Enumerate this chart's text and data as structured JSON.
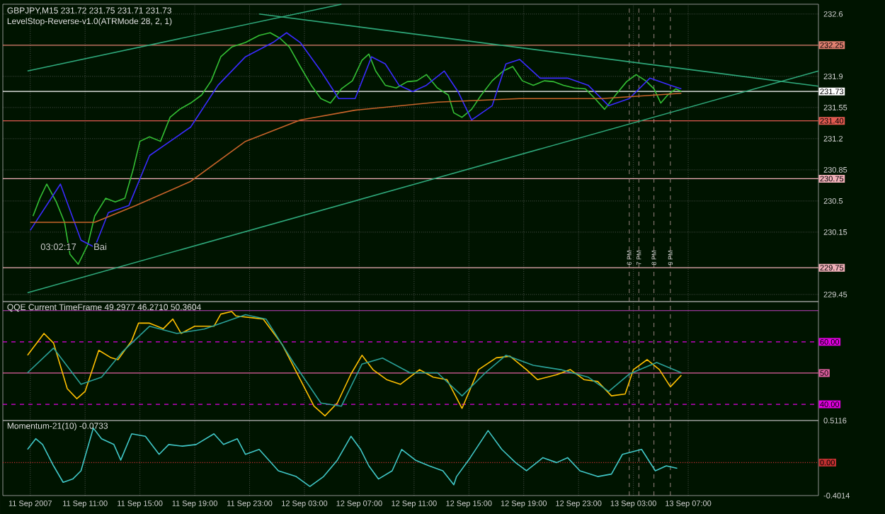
{
  "chart_data": [
    {
      "type": "line",
      "title": "GBPJPY,M15 231.72 231.75 231.71 231.73",
      "subtitle": "LevelStop-Reverse-v1.0(ATRMode 28, 2, 1)",
      "xlim": [
        "2007-09-11T05:00",
        "2007-09-13T16:30"
      ],
      "ylim": [
        229.37,
        232.71
      ],
      "xticks": [
        "2007-09-11T07:00",
        "2007-09-11T11:00",
        "2007-09-11T15:00",
        "2007-09-11T19:00",
        "2007-09-11T23:00",
        "2007-09-12T03:00",
        "2007-09-12T07:00",
        "2007-09-12T11:00",
        "2007-09-12T15:00",
        "2007-09-12T19:00",
        "2007-09-12T23:00",
        "2007-09-13T03:00",
        "2007-09-13T07:00"
      ],
      "yticks": [
        229.45,
        230.15,
        230.5,
        230.85,
        231.2,
        231.55,
        231.9,
        232.6
      ],
      "tick_labels": "y",
      "grid": true,
      "series": [
        {
          "color": "#34c034",
          "x": [
            "2007-09-11T07:12",
            "2007-09-11T07:42",
            "2007-09-11T08:12",
            "2007-09-11T08:54",
            "2007-09-11T09:30",
            "2007-09-11T09:54",
            "2007-09-11T10:30",
            "2007-09-11T11:12",
            "2007-09-11T11:42",
            "2007-09-11T12:30",
            "2007-09-11T13:12",
            "2007-09-11T13:54",
            "2007-09-11T14:30",
            "2007-09-11T15:00",
            "2007-09-11T15:42",
            "2007-09-11T16:30",
            "2007-09-11T17:12",
            "2007-09-11T17:54",
            "2007-09-11T18:42",
            "2007-09-11T19:30",
            "2007-09-11T20:12",
            "2007-09-11T20:54",
            "2007-09-11T21:42",
            "2007-09-11T22:42",
            "2007-09-11T23:42",
            "2007-09-12T00:30",
            "2007-09-12T01:12",
            "2007-09-12T01:54",
            "2007-09-12T02:42",
            "2007-09-12T03:30",
            "2007-09-12T04:12",
            "2007-09-12T04:54",
            "2007-09-12T05:42",
            "2007-09-12T06:30",
            "2007-09-12T07:12",
            "2007-09-12T07:42",
            "2007-09-12T08:12",
            "2007-09-12T08:54",
            "2007-09-12T09:42",
            "2007-09-12T10:30",
            "2007-09-12T11:12",
            "2007-09-12T11:54",
            "2007-09-12T12:42",
            "2007-09-12T13:30",
            "2007-09-12T13:54",
            "2007-09-12T14:30",
            "2007-09-12T15:12",
            "2007-09-12T15:54",
            "2007-09-12T16:42",
            "2007-09-12T17:30",
            "2007-09-12T18:12",
            "2007-09-12T18:54",
            "2007-09-12T19:42",
            "2007-09-12T20:30",
            "2007-09-12T21:12",
            "2007-09-12T21:54",
            "2007-09-12T22:42",
            "2007-09-12T23:30",
            "2007-09-13T00:12",
            "2007-09-13T00:54",
            "2007-09-13T01:42",
            "2007-09-13T02:30",
            "2007-09-13T03:12",
            "2007-09-13T03:54",
            "2007-09-13T04:30",
            "2007-09-13T05:00",
            "2007-09-13T05:30",
            "2007-09-13T06:06",
            "2007-09-13T06:30"
          ],
          "values": [
            230.33,
            230.53,
            230.69,
            230.49,
            230.26,
            229.9,
            229.79,
            230.01,
            230.33,
            230.53,
            230.49,
            230.53,
            230.85,
            231.17,
            231.22,
            231.17,
            231.44,
            231.53,
            231.6,
            231.69,
            231.85,
            232.12,
            232.23,
            232.28,
            232.36,
            232.39,
            232.33,
            232.23,
            232.01,
            231.8,
            231.65,
            231.6,
            231.76,
            231.85,
            232.08,
            232.15,
            231.96,
            231.8,
            231.77,
            231.84,
            231.85,
            231.92,
            231.77,
            231.69,
            231.49,
            231.44,
            231.53,
            231.69,
            231.85,
            231.96,
            232.01,
            231.85,
            231.8,
            231.85,
            231.84,
            231.8,
            231.77,
            231.76,
            231.65,
            231.53,
            231.69,
            231.84,
            231.92,
            231.85,
            231.76,
            231.6,
            231.69,
            231.76,
            231.73
          ]
        },
        {
          "color": "#3a2bff",
          "x": [
            "2007-09-11T07:00",
            "2007-09-11T09:12",
            "2007-09-11T10:42",
            "2007-09-11T11:42",
            "2007-09-11T12:42",
            "2007-09-11T14:12",
            "2007-09-11T15:42",
            "2007-09-11T17:12",
            "2007-09-11T18:42",
            "2007-09-11T20:42",
            "2007-09-11T22:42",
            "2007-09-12T00:42",
            "2007-09-12T01:42",
            "2007-09-12T02:42",
            "2007-09-12T04:12",
            "2007-09-12T05:30",
            "2007-09-12T06:42",
            "2007-09-12T07:54",
            "2007-09-12T08:54",
            "2007-09-12T09:54",
            "2007-09-12T10:54",
            "2007-09-12T11:54",
            "2007-09-12T13:12",
            "2007-09-12T14:12",
            "2007-09-12T15:12",
            "2007-09-12T16:42",
            "2007-09-12T17:42",
            "2007-09-12T18:42",
            "2007-09-12T20:12",
            "2007-09-12T22:12",
            "2007-09-12T23:42",
            "2007-09-13T01:12",
            "2007-09-13T02:42",
            "2007-09-13T04:12",
            "2007-09-13T05:42",
            "2007-09-13T06:30"
          ],
          "values": [
            230.17,
            230.69,
            230.06,
            229.98,
            230.37,
            230.45,
            231.01,
            231.17,
            231.33,
            231.8,
            232.12,
            232.28,
            232.39,
            232.28,
            231.96,
            231.65,
            231.65,
            232.12,
            232.04,
            231.8,
            231.73,
            231.8,
            231.96,
            231.73,
            231.41,
            231.57,
            232.04,
            232.09,
            231.88,
            231.88,
            231.8,
            231.57,
            231.65,
            231.88,
            231.8,
            231.76
          ]
        },
        {
          "color": "#c8642a",
          "x": [
            "2007-09-11T07:00",
            "2007-09-11T11:42",
            "2007-09-11T14:42",
            "2007-09-11T18:42",
            "2007-09-11T22:42",
            "2007-09-12T02:42",
            "2007-09-12T06:42",
            "2007-09-12T12:42",
            "2007-09-12T18:42",
            "2007-09-13T00:42",
            "2007-09-13T06:30"
          ],
          "values": [
            230.26,
            230.26,
            230.45,
            230.72,
            231.17,
            231.41,
            231.52,
            231.61,
            231.65,
            231.65,
            231.71
          ]
        },
        {
          "color": "#2ea87a",
          "x": [
            "2007-09-11T06:48",
            "2007-09-12T05:42"
          ],
          "values": [
            231.96,
            232.71
          ]
        },
        {
          "color": "#2ea87a",
          "x": [
            "2007-09-11T23:42",
            "2007-09-13T16:30"
          ],
          "values": [
            232.6,
            231.79
          ]
        },
        {
          "color": "#2ea87a",
          "x": [
            "2007-09-11T06:48",
            "2007-09-13T16:30"
          ],
          "values": [
            229.47,
            231.96
          ]
        }
      ],
      "ref_lines": [
        {
          "axis": "y",
          "value": 232.25,
          "label": "232.25",
          "color": "#e08070",
          "line_style": "solid"
        },
        {
          "axis": "y",
          "value": 231.73,
          "label": "231.73",
          "color": "#ffffff",
          "line_style": "solid"
        },
        {
          "axis": "y",
          "value": 231.4,
          "label": "231.40",
          "color": "#e05a50",
          "line_style": "solid"
        },
        {
          "axis": "y",
          "value": 230.75,
          "label": "230.75",
          "color": "#f0b0b8",
          "line_style": "solid"
        },
        {
          "axis": "y",
          "value": 229.75,
          "label": "229.75",
          "color": "#f0b0b8",
          "line_style": "solid"
        },
        {
          "axis": "x",
          "value": "2007-09-13T02:42",
          "label": "6 PM",
          "color": "#c0a0a0",
          "line_style": "dashed"
        },
        {
          "axis": "x",
          "value": "2007-09-13T03:24",
          "label": "7 PM",
          "color": "#c0a0a0",
          "line_style": "dashed"
        },
        {
          "axis": "x",
          "value": "2007-09-13T04:30",
          "label": "8 PM",
          "color": "#c0a0a0",
          "line_style": "dashed"
        },
        {
          "axis": "x",
          "value": "2007-09-13T05:42",
          "label": "9 PM",
          "color": "#c0a0a0",
          "line_style": "dashed"
        }
      ],
      "annotations": [
        "03:02:17",
        "Bai"
      ]
    },
    {
      "type": "line",
      "title": "QQE Current TimeFrame 49.2977 46.2710 50.3604",
      "xlim": [
        "2007-09-11T05:00",
        "2007-09-13T16:30"
      ],
      "ylim": [
        34.8,
        72.9
      ],
      "xticks": [
        "2007-09-11T07:00",
        "2007-09-11T11:00",
        "2007-09-11T15:00",
        "2007-09-11T19:00",
        "2007-09-11T23:00",
        "2007-09-12T03:00",
        "2007-09-12T07:00",
        "2007-09-12T11:00",
        "2007-09-12T15:00",
        "2007-09-12T19:00",
        "2007-09-12T23:00",
        "2007-09-13T03:00",
        "2007-09-13T07:00"
      ],
      "tick_labels": "y",
      "grid": "x",
      "series": [
        {
          "color": "#ffc000",
          "x": [
            "2007-09-11T06:48",
            "2007-09-11T08:00",
            "2007-09-11T08:42",
            "2007-09-11T09:42",
            "2007-09-11T10:24",
            "2007-09-11T11:00",
            "2007-09-11T12:00",
            "2007-09-11T12:54",
            "2007-09-11T13:24",
            "2007-09-11T14:24",
            "2007-09-11T14:54",
            "2007-09-11T15:42",
            "2007-09-11T16:42",
            "2007-09-11T17:24",
            "2007-09-11T18:00",
            "2007-09-11T19:00",
            "2007-09-11T20:24",
            "2007-09-11T20:54",
            "2007-09-11T21:42",
            "2007-09-11T22:00",
            "2007-09-12T00:00",
            "2007-09-12T01:24",
            "2007-09-12T02:42",
            "2007-09-12T03:42",
            "2007-09-12T04:30",
            "2007-09-12T05:24",
            "2007-09-12T06:24",
            "2007-09-12T07:12",
            "2007-09-12T08:00",
            "2007-09-12T09:00",
            "2007-09-12T10:00",
            "2007-09-12T11:24",
            "2007-09-12T12:24",
            "2007-09-12T13:24",
            "2007-09-12T14:30",
            "2007-09-12T15:42",
            "2007-09-12T17:00",
            "2007-09-12T18:00",
            "2007-09-12T19:12",
            "2007-09-12T20:00",
            "2007-09-12T21:24",
            "2007-09-12T22:24",
            "2007-09-12T23:24",
            "2007-09-13T00:24",
            "2007-09-13T01:24",
            "2007-09-13T02:24",
            "2007-09-13T03:00",
            "2007-09-13T04:00",
            "2007-09-13T04:54",
            "2007-09-13T05:42",
            "2007-09-13T06:30"
          ],
          "values": [
            55.7,
            62.7,
            59.6,
            45.0,
            41.8,
            44.1,
            57.3,
            54.9,
            54.3,
            60.4,
            66.0,
            66.0,
            64.2,
            67.3,
            62.7,
            65.0,
            65.0,
            68.9,
            69.7,
            68.3,
            67.3,
            59.0,
            47.9,
            39.4,
            36.3,
            40.4,
            49.7,
            55.7,
            51.1,
            47.9,
            46.4,
            51.1,
            48.7,
            47.9,
            38.7,
            51.1,
            54.9,
            55.4,
            51.1,
            47.9,
            49.5,
            51.1,
            47.9,
            47.3,
            42.7,
            43.3,
            51.1,
            54.3,
            51.1,
            45.6,
            49.3
          ]
        },
        {
          "color": "#2aa198",
          "x": [
            "2007-09-11T06:48",
            "2007-09-11T08:42",
            "2007-09-11T10:42",
            "2007-09-11T12:12",
            "2007-09-11T13:42",
            "2007-09-11T15:42",
            "2007-09-11T17:42",
            "2007-09-11T19:42",
            "2007-09-11T22:42",
            "2007-09-12T00:12",
            "2007-09-12T02:12",
            "2007-09-12T04:12",
            "2007-09-12T05:42",
            "2007-09-12T07:12",
            "2007-09-12T08:42",
            "2007-09-12T10:42",
            "2007-09-12T12:42",
            "2007-09-12T14:30",
            "2007-09-12T16:12",
            "2007-09-12T17:42",
            "2007-09-12T19:42",
            "2007-09-12T21:42",
            "2007-09-12T23:42",
            "2007-09-13T01:12",
            "2007-09-13T02:42",
            "2007-09-13T04:42",
            "2007-09-13T06:30"
          ],
          "values": [
            50.1,
            58.0,
            46.4,
            48.7,
            56.7,
            65.0,
            62.7,
            64.1,
            68.7,
            67.3,
            53.4,
            40.4,
            39.4,
            52.9,
            54.8,
            50.1,
            50.1,
            42.7,
            50.1,
            55.7,
            52.5,
            51.1,
            48.7,
            44.1,
            49.7,
            53.4,
            50.1
          ]
        }
      ],
      "ref_lines": [
        {
          "axis": "y",
          "value": 70,
          "label": null,
          "color": "#c040c0",
          "line_style": "solid"
        },
        {
          "axis": "y",
          "value": 60,
          "label": "60.00",
          "color": "#e000e0",
          "line_style": "dashed"
        },
        {
          "axis": "y",
          "value": 50,
          "label": "50",
          "color": "#e060a0",
          "line_style": "solid"
        },
        {
          "axis": "y",
          "value": 40,
          "label": "40.00",
          "color": "#e000e0",
          "line_style": "dashed"
        },
        {
          "axis": "x",
          "value": "2007-09-13T02:42",
          "label": null,
          "color": "#c0a0a0",
          "line_style": "dashed"
        },
        {
          "axis": "x",
          "value": "2007-09-13T03:24",
          "label": null,
          "color": "#c0a0a0",
          "line_style": "dashed"
        },
        {
          "axis": "x",
          "value": "2007-09-13T04:30",
          "label": null,
          "color": "#c0a0a0",
          "line_style": "dashed"
        },
        {
          "axis": "x",
          "value": "2007-09-13T05:42",
          "label": null,
          "color": "#c0a0a0",
          "line_style": "dashed"
        }
      ]
    },
    {
      "type": "line",
      "title": "Momentum-21(10) -0.0733",
      "xlim": [
        "2007-09-11T05:00",
        "2007-09-13T16:30"
      ],
      "ylim": [
        -0.4014,
        0.5116
      ],
      "xticks": [
        {
          "value": "2007-09-11T07:00",
          "label": "11 Sep 2007"
        },
        {
          "value": "2007-09-11T11:00",
          "label": "11 Sep 11:00"
        },
        {
          "value": "2007-09-11T15:00",
          "label": "11 Sep 15:00"
        },
        {
          "value": "2007-09-11T19:00",
          "label": "11 Sep 19:00"
        },
        {
          "value": "2007-09-11T23:00",
          "label": "11 Sep 23:00"
        },
        {
          "value": "2007-09-12T03:00",
          "label": "12 Sep 03:00"
        },
        {
          "value": "2007-09-12T07:00",
          "label": "12 Sep 07:00"
        },
        {
          "value": "2007-09-12T11:00",
          "label": "12 Sep 11:00"
        },
        {
          "value": "2007-09-12T15:00",
          "label": "12 Sep 15:00"
        },
        {
          "value": "2007-09-12T19:00",
          "label": "12 Sep 19:00"
        },
        {
          "value": "2007-09-12T23:00",
          "label": "12 Sep 23:00"
        },
        {
          "value": "2007-09-13T03:00",
          "label": "13 Sep 03:00"
        },
        {
          "value": "2007-09-13T07:00",
          "label": "13 Sep 07:00"
        }
      ],
      "yticks": [
        -0.4014,
        0.5116
      ],
      "grid": "x",
      "series": [
        {
          "color": "#40c8c8",
          "x": [
            "2007-09-11T06:48",
            "2007-09-11T07:24",
            "2007-09-11T07:54",
            "2007-09-11T08:42",
            "2007-09-11T09:24",
            "2007-09-11T10:06",
            "2007-09-11T10:42",
            "2007-09-11T11:36",
            "2007-09-11T12:12",
            "2007-09-11T13:06",
            "2007-09-11T13:36",
            "2007-09-11T14:24",
            "2007-09-11T15:24",
            "2007-09-11T16:24",
            "2007-09-11T17:06",
            "2007-09-11T18:06",
            "2007-09-11T19:06",
            "2007-09-11T20:24",
            "2007-09-11T21:06",
            "2007-09-11T22:06",
            "2007-09-11T22:42",
            "2007-09-11T23:42",
            "2007-09-12T01:06",
            "2007-09-12T02:24",
            "2007-09-12T03:24",
            "2007-09-12T04:24",
            "2007-09-12T05:24",
            "2007-09-12T06:24",
            "2007-09-12T07:06",
            "2007-09-12T07:42",
            "2007-09-12T08:24",
            "2007-09-12T09:24",
            "2007-09-12T10:06",
            "2007-09-12T11:06",
            "2007-09-12T12:06",
            "2007-09-12T13:06",
            "2007-09-12T13:54",
            "2007-09-12T14:06",
            "2007-09-12T15:06",
            "2007-09-12T16:24",
            "2007-09-12T17:24",
            "2007-09-12T18:24",
            "2007-09-12T19:12",
            "2007-09-12T20:24",
            "2007-09-12T21:24",
            "2007-09-12T22:12",
            "2007-09-12T23:06",
            "2007-09-13T00:24",
            "2007-09-13T01:24",
            "2007-09-13T02:12",
            "2007-09-13T03:36",
            "2007-09-13T04:36",
            "2007-09-13T05:24",
            "2007-09-13T06:12"
          ],
          "values": [
            0.16,
            0.29,
            0.22,
            -0.04,
            -0.24,
            -0.2,
            -0.1,
            0.42,
            0.29,
            0.22,
            0.03,
            0.35,
            0.32,
            0.1,
            0.22,
            0.2,
            0.22,
            0.35,
            0.22,
            0.29,
            0.1,
            0.16,
            -0.1,
            -0.17,
            -0.29,
            -0.17,
            0.03,
            0.32,
            0.16,
            -0.04,
            -0.2,
            -0.1,
            0.16,
            0.03,
            -0.04,
            -0.1,
            -0.27,
            -0.17,
            0.06,
            0.39,
            0.16,
            0.0,
            -0.1,
            0.06,
            0.0,
            0.06,
            -0.1,
            -0.17,
            -0.14,
            0.1,
            0.16,
            -0.1,
            -0.04,
            -0.07
          ]
        }
      ],
      "ref_lines": [
        {
          "axis": "y",
          "value": 0,
          "label": "0.00",
          "color": "#c03030",
          "line_style": "dotted"
        },
        {
          "axis": "x",
          "value": "2007-09-13T02:42",
          "label": null,
          "color": "#c0a0a0",
          "line_style": "dashed"
        },
        {
          "axis": "x",
          "value": "2007-09-13T03:24",
          "label": null,
          "color": "#c0a0a0",
          "line_style": "dashed"
        },
        {
          "axis": "x",
          "value": "2007-09-13T04:30",
          "label": null,
          "color": "#c0a0a0",
          "line_style": "dashed"
        },
        {
          "axis": "x",
          "value": "2007-09-13T05:42",
          "label": null,
          "color": "#c0a0a0",
          "line_style": "dashed"
        }
      ]
    }
  ]
}
